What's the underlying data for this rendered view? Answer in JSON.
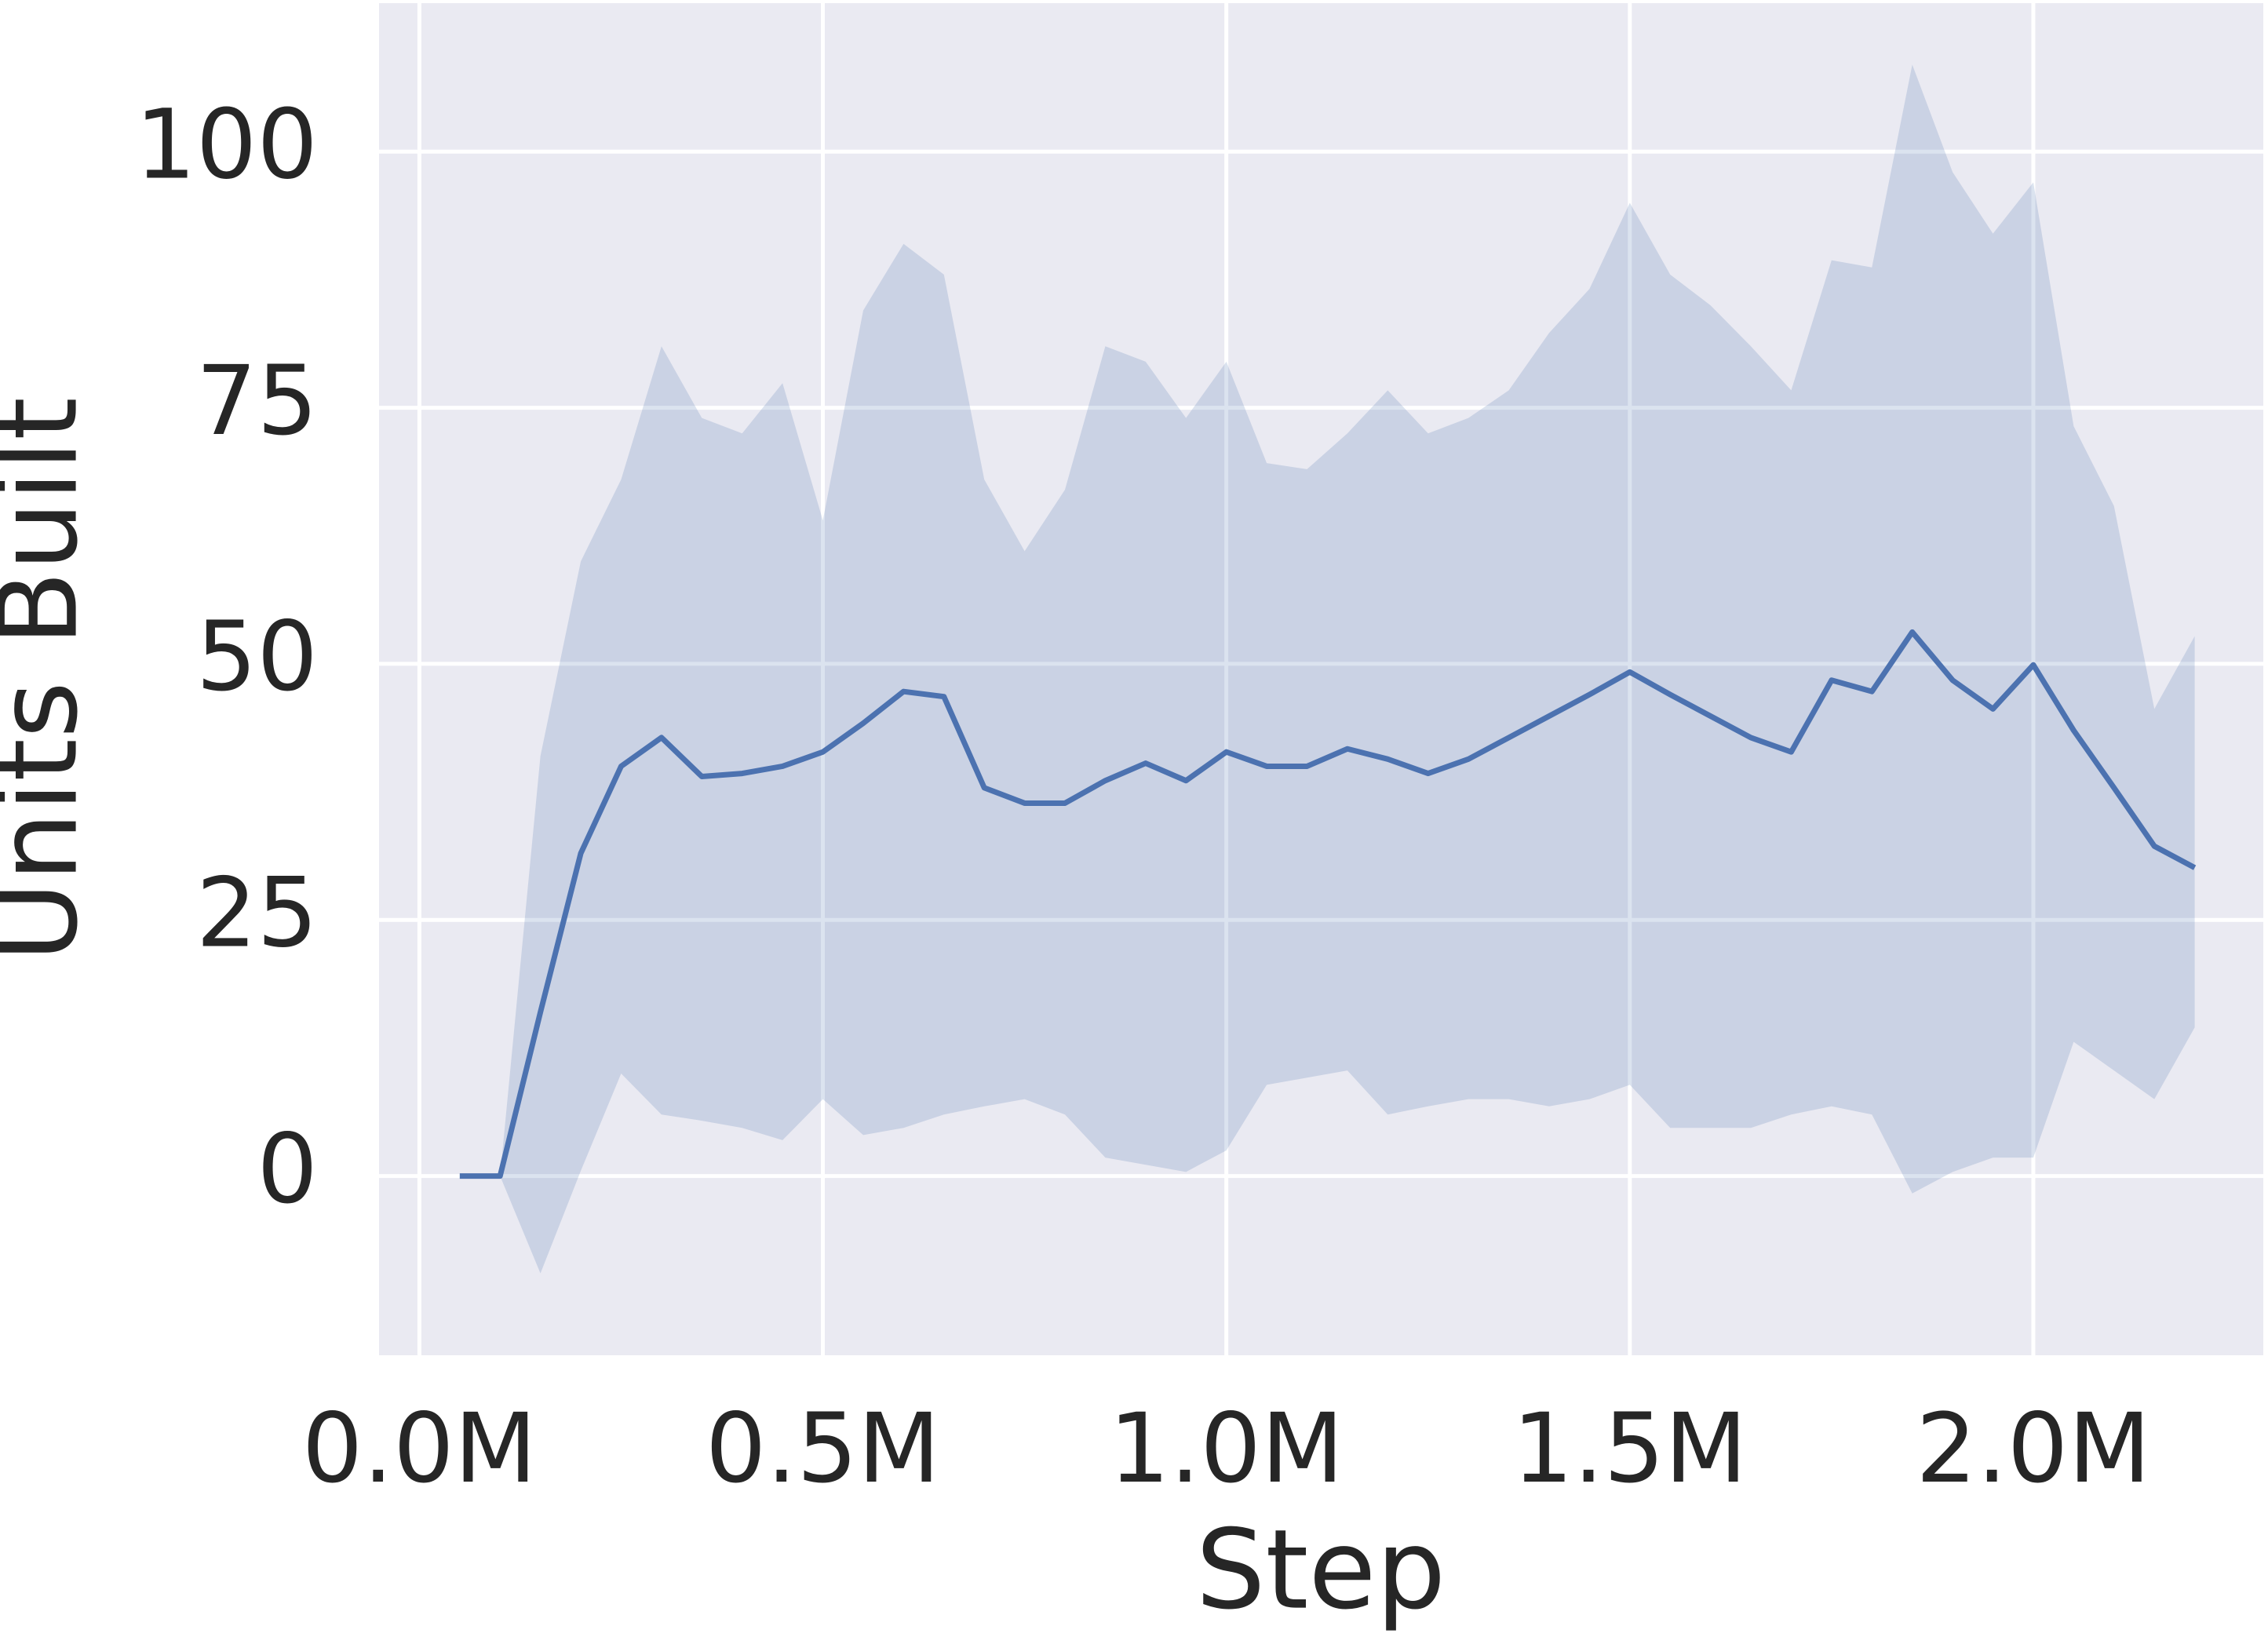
{
  "chart_data": {
    "type": "line",
    "xlabel": "Step",
    "ylabel": "Units Built",
    "x": [
      50000,
      100000,
      150000,
      200000,
      250000,
      300000,
      350000,
      400000,
      450000,
      500000,
      550000,
      600000,
      650000,
      700000,
      750000,
      800000,
      850000,
      900000,
      950000,
      1000000,
      1050000,
      1100000,
      1150000,
      1200000,
      1250000,
      1300000,
      1350000,
      1400000,
      1450000,
      1500000,
      1550000,
      1600000,
      1650000,
      1700000,
      1750000,
      1800000,
      1850000,
      1900000,
      1950000,
      2000000,
      2050000,
      2100000,
      2150000,
      2200000
    ],
    "values": [
      0,
      0,
      16,
      31.5,
      40,
      42.8,
      39,
      39.3,
      40,
      41.4,
      44.2,
      47.3,
      46.8,
      37.9,
      36.4,
      36.4,
      38.6,
      40.3,
      38.6,
      41.4,
      40,
      40,
      41.7,
      40.7,
      39.3,
      40.7,
      42.8,
      44.9,
      47,
      49.2,
      47,
      44.9,
      42.8,
      41.4,
      48.4,
      47.3,
      53.1,
      48.4,
      45.6,
      49.9,
      43.5,
      37.9,
      32.2,
      30.1
    ],
    "upper": [
      0,
      0,
      41,
      60,
      68,
      81,
      74,
      72.5,
      77.4,
      64,
      84.5,
      91,
      88,
      68,
      61,
      67,
      81,
      79.5,
      74,
      79.5,
      69.6,
      69,
      72.5,
      76.7,
      72.5,
      74,
      76.7,
      82.3,
      86.6,
      95,
      88,
      85,
      81,
      76.7,
      89.4,
      88.7,
      108.5,
      98,
      92,
      97,
      73.2,
      65.4,
      45.6,
      52.7
    ],
    "lower": [
      0,
      0,
      -9.5,
      0.5,
      10,
      6,
      5.4,
      4.7,
      3.5,
      7.5,
      4,
      4.7,
      6,
      6.8,
      7.5,
      6,
      1.8,
      1.1,
      0.4,
      2.5,
      8.9,
      9.6,
      10.3,
      6,
      6.8,
      7.5,
      7.5,
      6.8,
      7.5,
      8.9,
      4.7,
      4.7,
      4.7,
      6,
      6.8,
      6,
      -1.7,
      0.4,
      1.8,
      1.8,
      13.1,
      10.3,
      7.5,
      14.5
    ],
    "color": "#4c72b0",
    "xlim": [
      -50000,
      2285000
    ],
    "xticks": [
      {
        "value": 0,
        "label": "0.0M"
      },
      {
        "value": 500000,
        "label": "0.5M"
      },
      {
        "value": 1000000,
        "label": "1.0M"
      },
      {
        "value": 1500000,
        "label": "1.5M"
      },
      {
        "value": 2000000,
        "label": "2.0M"
      }
    ],
    "ylim": [
      -17.5,
      114.5
    ],
    "yticks": [
      0,
      25,
      50,
      75,
      100
    ],
    "grid": true
  }
}
